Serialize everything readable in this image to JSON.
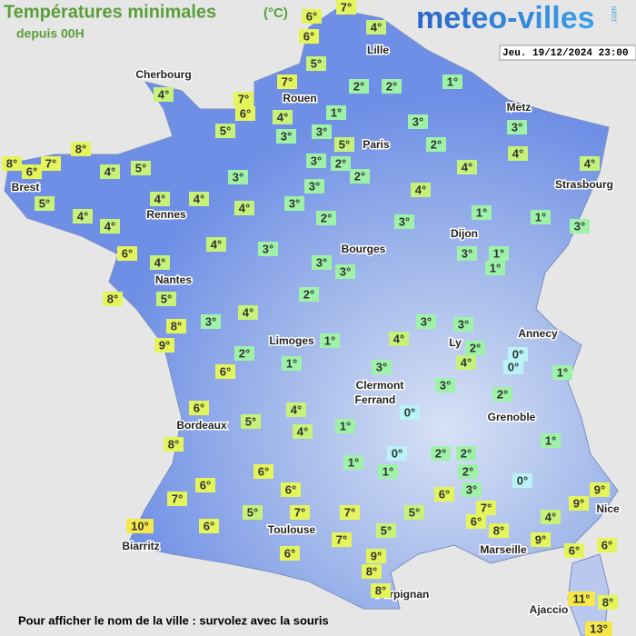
{
  "header": {
    "title": "Températures minimales",
    "unit": "(°C)",
    "subtitle": "depuis 00H",
    "logo": "meteo-villes",
    "logo_suffix": ".com",
    "date": "Jeu. 19/12/2024 23:00"
  },
  "cities": [
    "Lille",
    "Cherbourg",
    "Rouen",
    "Metz",
    "Paris",
    "Brest",
    "Strasbourg",
    "Rennes",
    "Dijon",
    "Bourges",
    "Nantes",
    "Annecy",
    "Limoges",
    "Ly",
    "Clermont",
    "Ferrand",
    "Grenoble",
    "Bordeaux",
    "Nice",
    "Toulouse",
    "Biarritz",
    "Marseille",
    "Perpignan",
    "Ajaccio"
  ],
  "markers": [
    "6°",
    "7°",
    "6°",
    "4°",
    "5°",
    "7°",
    "2°",
    "2°",
    "1°",
    "4°",
    "7°",
    "6°",
    "4°",
    "1°",
    "3°",
    "3°",
    "5°",
    "3°",
    "3°",
    "5°",
    "2°",
    "4°",
    "8°",
    "8°",
    "6°",
    "7°",
    "4°",
    "5°",
    "3°",
    "2°",
    "4°",
    "4°",
    "3°",
    "2°",
    "3°",
    "4°",
    "5°",
    "4°",
    "4°",
    "4°",
    "3°",
    "2°",
    "4°",
    "4°",
    "3°",
    "1°",
    "1°",
    "3°",
    "4°",
    "3°",
    "6°",
    "4°",
    "3°",
    "3°",
    "3°",
    "1°",
    "1°",
    "8°",
    "5°",
    "2°",
    "3°",
    "4°",
    "8°",
    "3°",
    "3°",
    "9°",
    "4°",
    "1°",
    "2°",
    "0°",
    "2°",
    "0°",
    "1°",
    "6°",
    "1°",
    "3°",
    "4°",
    "3°",
    "2°",
    "6°",
    "4°",
    "0°",
    "5°",
    "1°",
    "4°",
    "8°",
    "1°",
    "0°",
    "2°",
    "2°",
    "1°",
    "1°",
    "6°",
    "2°",
    "0°",
    "6°",
    "6°",
    "3°",
    "6°",
    "9°",
    "7°",
    "9°",
    "7°",
    "5°",
    "7°",
    "7°",
    "5°",
    "6°",
    "4°",
    "10°",
    "6°",
    "5°",
    "8°",
    "9°",
    "7°",
    "6°",
    "9°",
    "6°",
    "6°",
    "8°",
    "8°",
    "11°",
    "8°",
    "13°"
  ],
  "footer": "Pour afficher le nom de la ville : survolez avec la souris"
}
